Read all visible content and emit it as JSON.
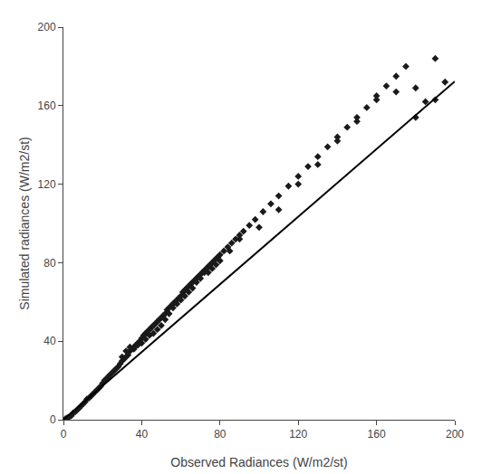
{
  "chart_data": {
    "type": "scatter",
    "xlabel": "Observed Radiances (W/m2/st)",
    "ylabel": "Simulated radiances (W/m2/st)",
    "xlim": [
      0,
      200
    ],
    "ylim": [
      0,
      200
    ],
    "xticks": [
      0,
      40,
      80,
      120,
      160,
      200
    ],
    "yticks": [
      0,
      40,
      80,
      120,
      160,
      200
    ],
    "grid": false,
    "series": [
      {
        "type": "scatter",
        "marker": "diamond",
        "color": "#1a1a1a",
        "x": [
          1,
          2,
          3,
          4,
          5,
          6,
          7,
          8,
          9,
          10,
          11,
          12,
          13,
          14,
          15,
          16,
          17,
          18,
          19,
          20,
          21,
          22,
          23,
          24,
          25,
          26,
          27,
          28,
          29,
          30,
          31,
          32,
          33,
          34,
          35,
          36,
          37,
          38,
          39,
          40,
          41,
          42,
          43,
          44,
          45,
          46,
          47,
          48,
          49,
          50,
          51,
          52,
          53,
          54,
          55,
          56,
          57,
          58,
          59,
          60,
          61,
          62,
          63,
          64,
          65,
          66,
          67,
          68,
          69,
          70,
          71,
          72,
          73,
          74,
          75,
          76,
          77,
          78,
          79,
          80,
          82,
          84,
          86,
          88,
          90,
          92,
          95,
          98,
          102,
          106,
          110,
          115,
          120,
          125,
          130,
          135,
          140,
          145,
          150,
          155,
          160,
          165,
          170,
          175,
          180,
          185,
          190,
          195,
          30,
          32,
          34,
          36,
          38,
          40,
          42,
          44,
          46,
          48,
          50,
          52,
          54,
          56,
          58,
          60,
          62,
          64,
          66,
          68,
          70,
          72,
          74,
          76,
          78,
          80,
          85,
          90,
          100,
          110,
          120,
          130,
          140,
          150,
          160,
          170,
          180,
          190
        ],
        "values": [
          0.5,
          1.0,
          1.5,
          2.0,
          3.5,
          4.0,
          5.0,
          6.0,
          7.0,
          8.0,
          9.0,
          10.5,
          11.0,
          12.0,
          13.0,
          14.0,
          15.0,
          16.0,
          17.0,
          18.5,
          20.0,
          21.0,
          22.0,
          23.0,
          24.0,
          25.0,
          26.0,
          27.0,
          28.5,
          30.0,
          31.0,
          32.0,
          33.0,
          35.0,
          36.0,
          37.0,
          38.0,
          39.0,
          40.0,
          41.5,
          43.0,
          44.0,
          45.0,
          46.0,
          47.0,
          48.0,
          49.0,
          50.0,
          51.0,
          52.0,
          53.0,
          54.0,
          56.0,
          57.0,
          58.0,
          59.0,
          60.0,
          61.0,
          62.0,
          63.0,
          65.0,
          66.0,
          67.0,
          68.0,
          69.0,
          70.0,
          71.0,
          72.0,
          73.0,
          74.0,
          75.0,
          76.0,
          77.0,
          78.0,
          79.0,
          80.0,
          81.0,
          82.0,
          83.0,
          84.0,
          86.0,
          88.0,
          90.0,
          92.0,
          94.0,
          96.0,
          99.0,
          102.0,
          106.0,
          110.0,
          114.0,
          119.0,
          124.0,
          129.0,
          134.0,
          139.0,
          144.0,
          149.0,
          154.0,
          159.0,
          165.0,
          170.0,
          175.0,
          180.0,
          169.0,
          162.0,
          163.0,
          172.0,
          32.0,
          35.0,
          37.0,
          36.0,
          38.0,
          39.0,
          41.0,
          43.0,
          44.0,
          46.0,
          48.0,
          51.0,
          54.0,
          57.0,
          59.0,
          61.0,
          63.0,
          65.0,
          67.0,
          70.0,
          72.0,
          75.0,
          75.0,
          77.0,
          79.0,
          81.0,
          86.0,
          92.0,
          98.0,
          107.0,
          120.0,
          130.0,
          142.0,
          152.0,
          163.0,
          167.0,
          154.0,
          184.0
        ]
      },
      {
        "type": "line",
        "line_style": "solid",
        "color": "#000000",
        "x": [
          0,
          200
        ],
        "values": [
          0.0,
          172.4
        ]
      }
    ]
  }
}
